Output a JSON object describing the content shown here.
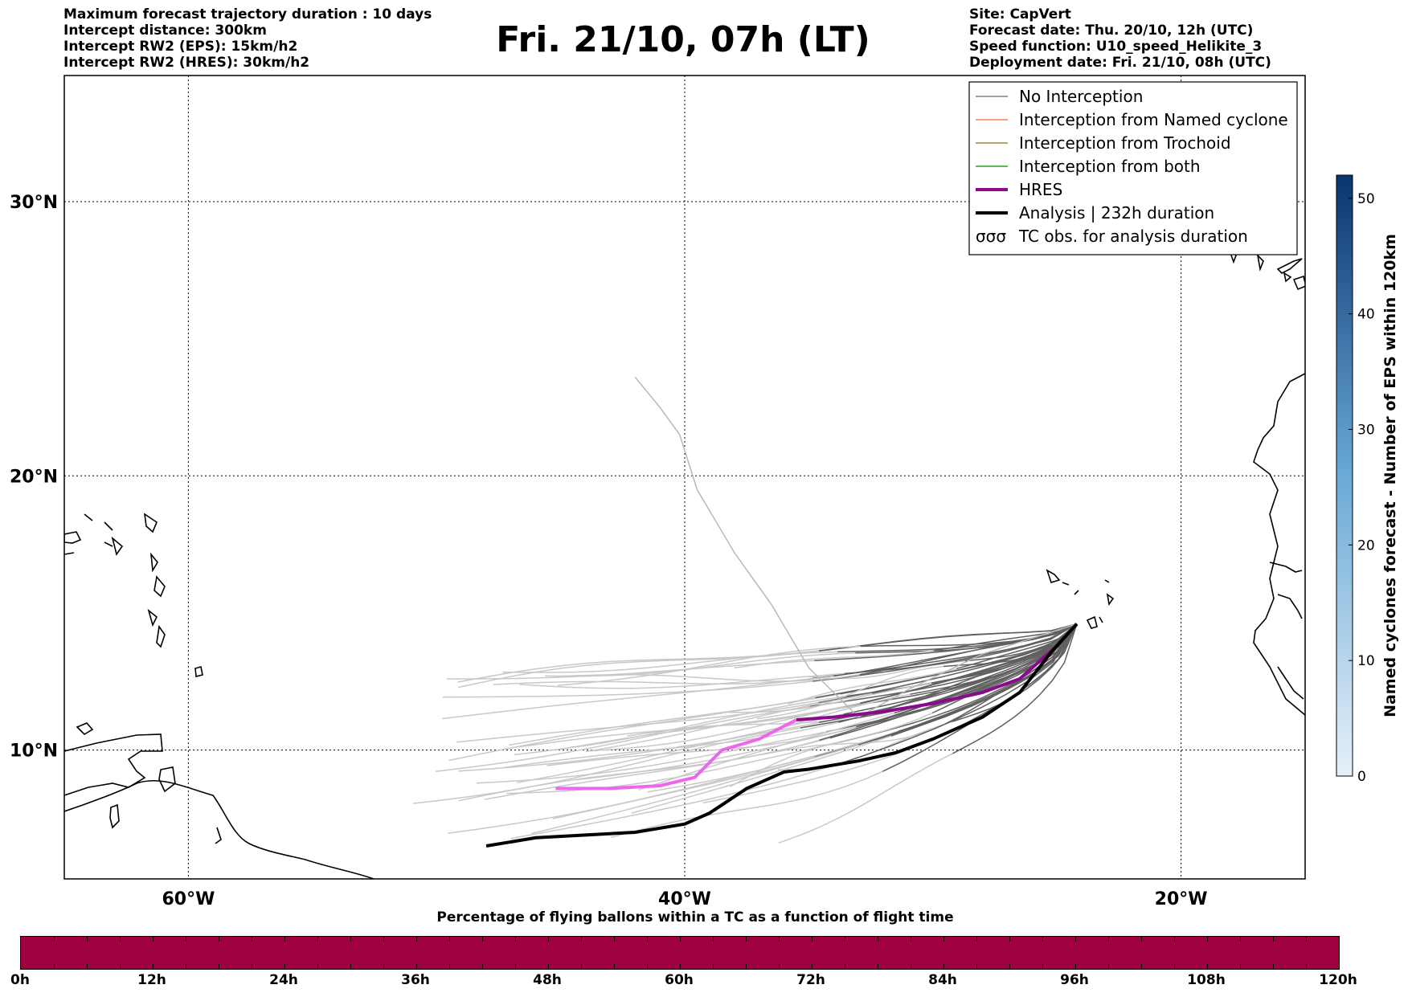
{
  "header_left": [
    "Maximum forecast trajectory duration : 10 days",
    "Intercept distance: 300km",
    "Intercept RW2 (EPS):  15km/h2",
    "Intercept RW2 (HRES): 30km/h2"
  ],
  "header_right": [
    "Site: CapVert",
    "Forecast date: Thu. 20/10, 12h (UTC)",
    "Speed function: U10_speed_Helikite_3",
    "Deployment date: Fri. 21/10, 08h (UTC)"
  ],
  "title": "Fri. 21/10, 07h (LT)",
  "map": {
    "lon_range": [
      -65,
      -15
    ],
    "lat_range": [
      5.3,
      34.6
    ],
    "lat_ticks": [
      {
        "value": 30,
        "label": "30°N"
      },
      {
        "value": 20,
        "label": "20°N"
      },
      {
        "value": 10,
        "label": "10°N"
      }
    ],
    "lon_ticks": [
      {
        "value": -60,
        "label": "60°W"
      },
      {
        "value": -40,
        "label": "40°W"
      },
      {
        "value": -20,
        "label": "20°W"
      }
    ],
    "grid": "dotted"
  },
  "legend": {
    "placement": "top-right",
    "items": [
      {
        "label": "No Interception",
        "color": "#808080",
        "style": "thin"
      },
      {
        "label": "Interception from Named cyclone",
        "color": "#ff7f50",
        "style": "thin"
      },
      {
        "label": "Interception from Trochoid",
        "color": "#9a8a30",
        "style": "thin"
      },
      {
        "label": "Interception from both",
        "color": "#2ca02c",
        "style": "thin"
      },
      {
        "label": "HRES",
        "color": "#8b0a8b",
        "style": "thick"
      },
      {
        "label": "Analysis | 232h duration",
        "color": "#000000",
        "style": "thick"
      },
      {
        "label": "TC obs. for analysis duration",
        "color": "#000000",
        "style": "symbol"
      }
    ]
  },
  "colorbar": {
    "label": "Named cyclones forecast - Number of EPS within 120km",
    "ticks": [
      0,
      10,
      20,
      30,
      40,
      50
    ],
    "max": 52,
    "color_low": "#e3edf8",
    "color_high": "#0a3a78"
  },
  "chart_data": {
    "type": "line",
    "title": "Fri. 21/10, 07h (LT)",
    "x_unit": "longitude (°E, negative = W)",
    "y_unit": "latitude (°N)",
    "series": [
      {
        "name": "HRES",
        "color": "#8b0a8b",
        "x": [
          -24.2,
          -25,
          -26.5,
          -28,
          -30,
          -32,
          -34,
          -35.5,
          -37,
          -38.5,
          -39.6,
          -41,
          -43,
          -45.2
        ],
        "y": [
          14.6,
          13.8,
          12.6,
          12.1,
          11.7,
          11.4,
          11.2,
          11.1,
          10.4,
          10.0,
          9.0,
          8.7,
          8.6,
          8.6
        ]
      },
      {
        "name": "Analysis | 232h duration",
        "color": "#000000",
        "x": [
          -24.2,
          -25.2,
          -26.5,
          -28,
          -30,
          -31.5,
          -33,
          -35,
          -36,
          -37.5,
          -39,
          -40,
          -42,
          -44,
          -46,
          -48
        ],
        "y": [
          14.6,
          13.6,
          12.1,
          11.2,
          10.4,
          9.9,
          9.6,
          9.3,
          9.2,
          8.6,
          7.7,
          7.3,
          7.0,
          6.9,
          6.8,
          6.5
        ]
      }
    ],
    "ensemble": {
      "count_shown": 50,
      "origin": {
        "lon": -24.2,
        "lat": 14.6
      },
      "colors": {
        "near_origin": "#606060",
        "far": "#c8c8c8"
      }
    }
  },
  "bottom_bar": {
    "title": "Percentage of flying ballons within a TC as a function of flight time",
    "color": "#9e0040",
    "ticks": [
      "0h",
      "12h",
      "24h",
      "36h",
      "48h",
      "60h",
      "72h",
      "84h",
      "96h",
      "108h",
      "120h"
    ]
  }
}
